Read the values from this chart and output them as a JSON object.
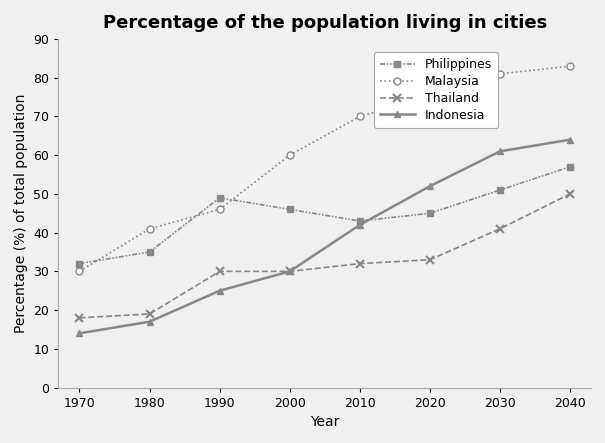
{
  "title": "Percentage of the population living in cities",
  "xlabel": "Year",
  "ylabel": "Percentage (%) of total population",
  "years": [
    1970,
    1980,
    1990,
    2000,
    2010,
    2020,
    2030,
    2040
  ],
  "philippines": [
    32,
    35,
    49,
    46,
    43,
    45,
    51,
    57
  ],
  "malaysia": [
    30,
    41,
    46,
    60,
    70,
    75,
    81,
    83
  ],
  "thailand": [
    18,
    19,
    30,
    30,
    32,
    33,
    41,
    50
  ],
  "indonesia": [
    14,
    17,
    25,
    30,
    42,
    52,
    61,
    64
  ],
  "ylim": [
    0,
    90
  ],
  "yticks": [
    0,
    10,
    20,
    30,
    40,
    50,
    60,
    70,
    80,
    90
  ],
  "line_color": "#888888",
  "background_color": "#f0f0f0",
  "title_fontsize": 13,
  "label_fontsize": 10,
  "tick_fontsize": 9,
  "legend_fontsize": 9
}
